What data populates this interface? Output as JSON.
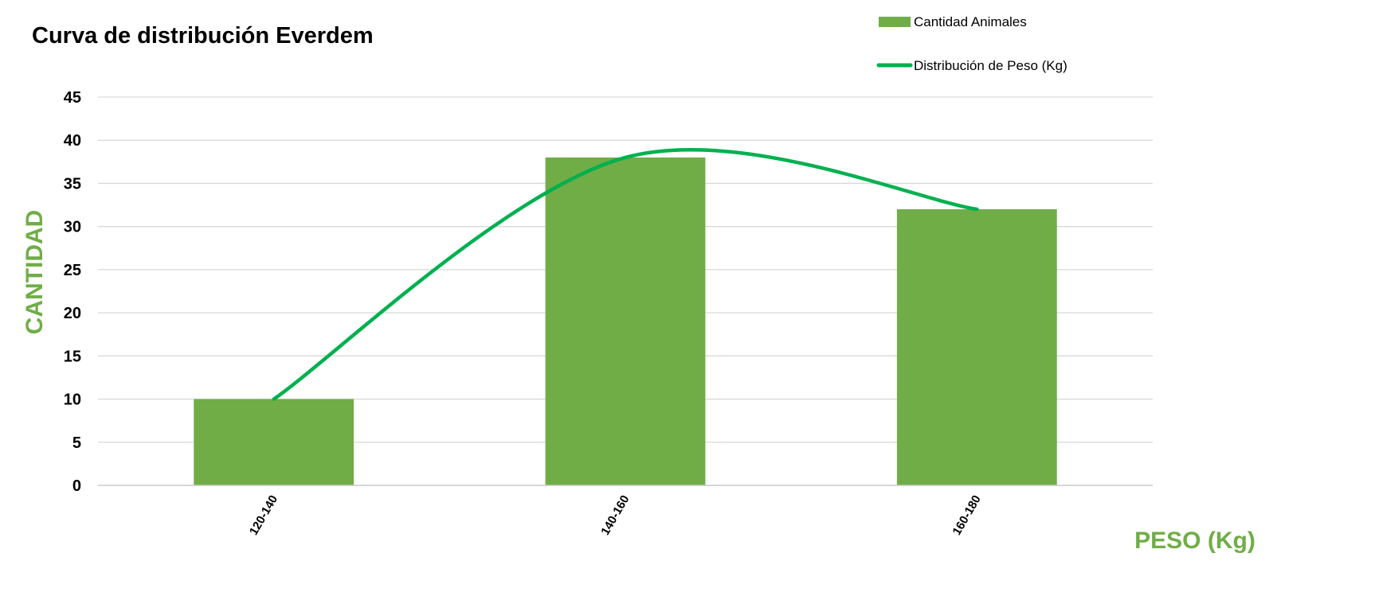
{
  "chart_data": {
    "type": "bar",
    "title": "Curva de distribución Everdem",
    "xlabel": "PESO (Kg)",
    "ylabel": "CANTIDAD",
    "categories": [
      "120-140",
      "140-160",
      "160-180"
    ],
    "series": [
      {
        "name": "Cantidad Animales",
        "kind": "bar",
        "values": [
          10,
          38,
          32
        ],
        "color": "#70ad47"
      },
      {
        "name": "Distribución de Peso (Kg)",
        "kind": "line",
        "smooth": true,
        "values": [
          10,
          38,
          32
        ],
        "color": "#00b050"
      }
    ],
    "ylim": [
      0,
      45
    ],
    "yticks": [
      0,
      5,
      10,
      15,
      20,
      25,
      30,
      35,
      40,
      45
    ],
    "grid": true,
    "legend": "top-right",
    "axis_title_color": "#70ad47"
  }
}
